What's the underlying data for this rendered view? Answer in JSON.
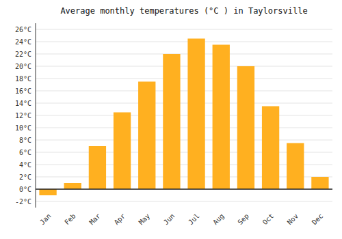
{
  "chart_data": {
    "type": "bar",
    "title": "Average monthly temperatures (°C ) in Taylorsville",
    "categories": [
      "Jan",
      "Feb",
      "Mar",
      "Apr",
      "May",
      "Jun",
      "Jul",
      "Aug",
      "Sep",
      "Oct",
      "Nov",
      "Dec"
    ],
    "values": [
      -1.0,
      1.0,
      7.0,
      12.5,
      17.5,
      22.0,
      24.5,
      23.5,
      20.0,
      13.5,
      7.5,
      2.0
    ],
    "color": "#FFB020",
    "ylim": [
      -3,
      27
    ],
    "yticks": [
      {
        "value": 26,
        "label": "26°C"
      },
      {
        "value": 24,
        "label": "24°C"
      },
      {
        "value": 22,
        "label": "22°C"
      },
      {
        "value": 20,
        "label": "20°C"
      },
      {
        "value": 18,
        "label": "18°C"
      },
      {
        "value": 16,
        "label": "16°C"
      },
      {
        "value": 14,
        "label": "14°C"
      },
      {
        "value": 12,
        "label": "12°C"
      },
      {
        "value": 10,
        "label": "10°C"
      },
      {
        "value": 8,
        "label": "8°C"
      },
      {
        "value": 6,
        "label": "6°C"
      },
      {
        "value": 4,
        "label": "4°C"
      },
      {
        "value": 2,
        "label": "2°C"
      },
      {
        "value": 0,
        "label": "0°C"
      },
      {
        "value": -2,
        "label": "-2°C"
      }
    ],
    "grid": true
  }
}
